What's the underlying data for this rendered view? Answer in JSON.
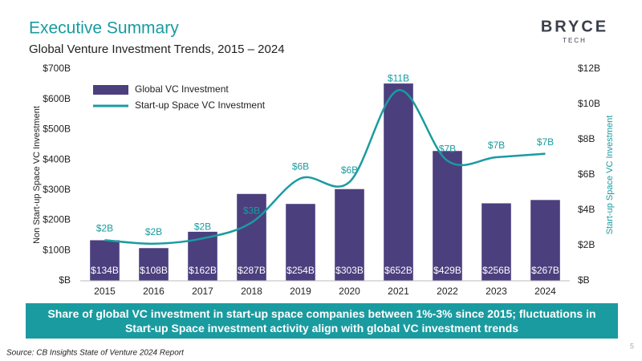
{
  "slide": {
    "title": "Executive Summary",
    "logo": "BRYCE",
    "logo_sub": "TECH",
    "callout": "Share of global VC investment in start-up space companies between 1%-3% since 2015; fluctuations in Start-up Space investment activity align with global VC investment trends",
    "source": "Source: CB Insights State of Venture 2024 Report",
    "page": "5"
  },
  "chart_data": {
    "type": "bar",
    "title": "Global Venture Investment Trends, 2015 – 2024",
    "y_label": "Non Start-up Space VC Investment",
    "y2_label": "Start-up Space VC Investment",
    "categories": [
      "2015",
      "2016",
      "2017",
      "2018",
      "2019",
      "2020",
      "2021",
      "2022",
      "2023",
      "2024"
    ],
    "series": [
      {
        "name": "Global VC Investment",
        "color": "#4b3f7e",
        "values": [
          134,
          108,
          162,
          287,
          254,
          303,
          652,
          429,
          256,
          267
        ],
        "value_labels": [
          "$134B",
          "$108B",
          "$162B",
          "$287B",
          "$254B",
          "$303B",
          "$652B",
          "$429B",
          "$256B",
          "$267B"
        ]
      },
      {
        "name": "Start-up Space VC Investment",
        "type": "line",
        "axis": "y2",
        "color": "#1a9ba0",
        "values": [
          2.3,
          2.1,
          2.4,
          3.3,
          5.8,
          5.6,
          10.8,
          6.8,
          7.0,
          7.2
        ],
        "value_labels": [
          "$2B",
          "$2B",
          "$2B",
          "$3B",
          "$6B",
          "$6B",
          "$11B",
          "$7B",
          "$7B",
          "$7B"
        ]
      }
    ],
    "ylim": [
      0,
      700
    ],
    "yticks": [
      {
        "value": 0,
        "label": "$B"
      },
      {
        "value": 100,
        "label": "$100B"
      },
      {
        "value": 200,
        "label": "$200B"
      },
      {
        "value": 300,
        "label": "$300B"
      },
      {
        "value": 400,
        "label": "$400B"
      },
      {
        "value": 500,
        "label": "$500B"
      },
      {
        "value": 600,
        "label": "$600B"
      },
      {
        "value": 700,
        "label": "$700B"
      }
    ],
    "y2lim": [
      0,
      12
    ],
    "y2ticks": [
      {
        "value": 0,
        "label": "$B"
      },
      {
        "value": 2,
        "label": "$2B"
      },
      {
        "value": 4,
        "label": "$4B"
      },
      {
        "value": 6,
        "label": "$6B"
      },
      {
        "value": 8,
        "label": "$8B"
      },
      {
        "value": 10,
        "label": "$10B"
      },
      {
        "value": 12,
        "label": "$12B"
      }
    ],
    "legend": "upper left"
  }
}
